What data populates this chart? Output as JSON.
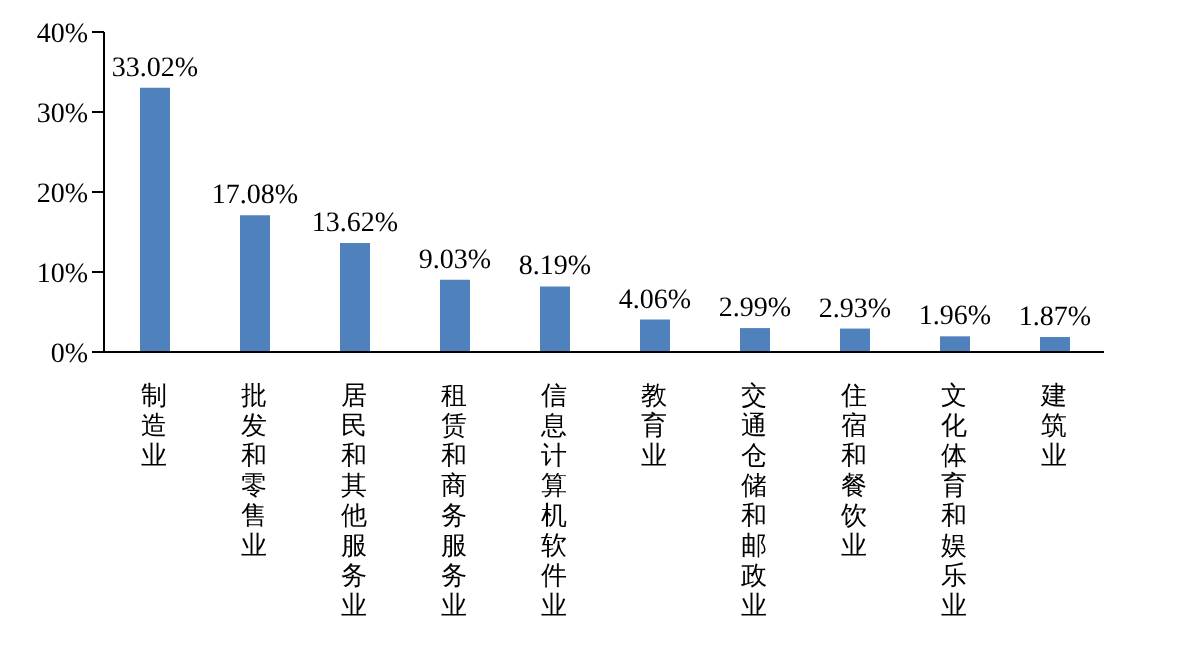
{
  "chart_data": {
    "type": "bar",
    "categories": [
      "制造业",
      "批发和零售业",
      "居民和其他服务业",
      "租赁和商务服务业",
      "信息计算机软件业",
      "教育业",
      "交通仓储和邮政业",
      "住宿和餐饮业",
      "文化体育和娱乐业",
      "建筑业"
    ],
    "values": [
      33.02,
      17.08,
      13.62,
      9.03,
      8.19,
      4.06,
      2.99,
      2.93,
      1.96,
      1.87
    ],
    "value_labels": [
      "33.02%",
      "17.08%",
      "13.62%",
      "9.03%",
      "8.19%",
      "4.06%",
      "2.99%",
      "2.93%",
      "1.96%",
      "1.87%"
    ],
    "color": "#4f81bd",
    "ylim": [
      0,
      40
    ],
    "yticks": [
      {
        "value": 0,
        "label": "0%"
      },
      {
        "value": 10,
        "label": "10%"
      },
      {
        "value": 20,
        "label": "20%"
      },
      {
        "value": 30,
        "label": "30%"
      },
      {
        "value": 40,
        "label": "40%"
      }
    ],
    "grid": false,
    "legend": false
  }
}
